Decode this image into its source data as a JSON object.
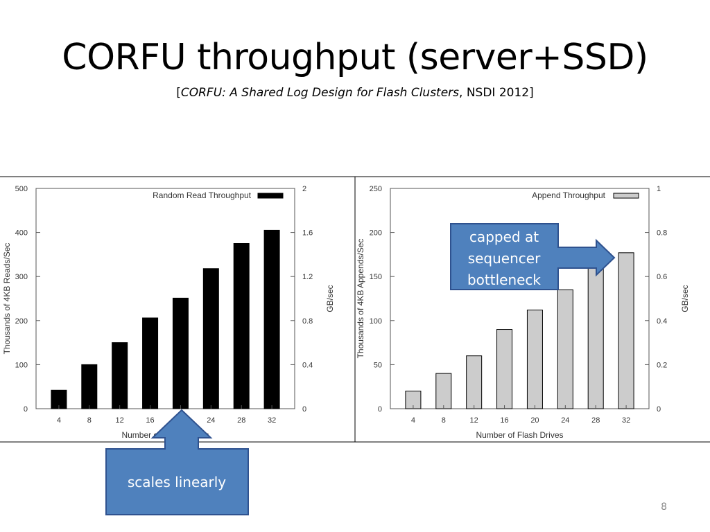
{
  "slide": {
    "title": "CORFU throughput (server+SSD)",
    "subtitle_open": "[",
    "subtitle_italic": "CORFU: A Shared Log Design for Flash Clusters",
    "subtitle_rest": ", NSDI 2012]",
    "page_number": "8"
  },
  "callouts": {
    "left": "scales linearly",
    "right_lines": [
      "capped at",
      "sequencer",
      "bottleneck"
    ],
    "fill_color": "#4f81bd",
    "border_color": "#2f528f"
  },
  "chart_data": [
    {
      "type": "bar",
      "categories": [
        "4",
        "8",
        "12",
        "16",
        "20",
        "24",
        "28",
        "32"
      ],
      "values": [
        42,
        100,
        150,
        206,
        251,
        318,
        375,
        405
      ],
      "series": [
        {
          "name": "Random Read Throughput",
          "color": "#000000"
        }
      ],
      "xlabel": "Number of Flash Drives",
      "ylabel": "Thousands of 4KB Reads/Sec",
      "y2label": "GB/sec",
      "ylim": [
        0,
        500
      ],
      "y2lim": [
        0,
        2
      ],
      "yticks": [
        "0",
        "100",
        "200",
        "300",
        "400",
        "500"
      ],
      "y2ticks": [
        "0",
        "0.4",
        "0.8",
        "1.2",
        "1.6",
        "2"
      ],
      "legend": "top-right",
      "grid": false
    },
    {
      "type": "bar",
      "categories": [
        "4",
        "8",
        "12",
        "16",
        "20",
        "24",
        "28",
        "32"
      ],
      "values": [
        20,
        40,
        60,
        90,
        112,
        135,
        162,
        177
      ],
      "series": [
        {
          "name": "Append Throughput",
          "color": "#cccccc"
        }
      ],
      "xlabel": "Number of Flash Drives",
      "ylabel": "Thousands of 4KB Appends/Sec",
      "y2label": "GB/sec",
      "ylim": [
        0,
        250
      ],
      "y2lim": [
        0,
        1
      ],
      "yticks": [
        "0",
        "50",
        "100",
        "150",
        "200",
        "250"
      ],
      "y2ticks": [
        "0",
        "0.2",
        "0.4",
        "0.6",
        "0.8",
        "1"
      ],
      "legend": "top-right",
      "grid": false
    }
  ]
}
